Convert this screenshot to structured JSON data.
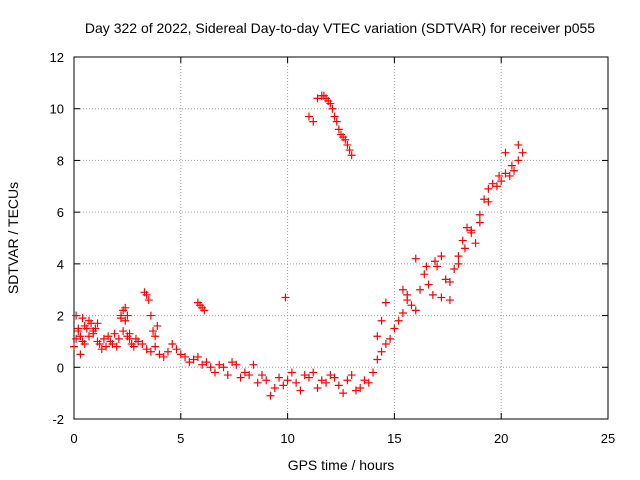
{
  "chart_data": {
    "type": "scatter",
    "title": "Day 322 of 2022, Sidereal Day-to-day VTEC variation (SDTVAR) for receiver p055",
    "xlabel": "GPS time / hours",
    "ylabel": "SDTVAR / TECUs",
    "xlim": [
      0,
      25
    ],
    "ylim": [
      -2,
      12
    ],
    "x_ticks": [
      0,
      5,
      10,
      15,
      20,
      25
    ],
    "y_ticks": [
      -2,
      0,
      2,
      4,
      6,
      8,
      10,
      12
    ],
    "x_tick_labels": [
      "0",
      "5",
      "10",
      "15",
      "20",
      "25"
    ],
    "y_tick_labels": [
      "-2",
      "0",
      "2",
      "4",
      "6",
      "8",
      "10",
      "12"
    ],
    "grid": true,
    "marker": "plus",
    "marker_color": "#ff0000",
    "series": [
      {
        "name": "SDTVAR",
        "x": [
          0.0,
          0.1,
          0.2,
          0.3,
          0.4,
          0.5,
          0.6,
          0.7,
          0.8,
          0.9,
          1.0,
          1.1,
          1.2,
          1.3,
          1.4,
          1.5,
          1.6,
          1.7,
          1.8,
          1.9,
          2.0,
          2.1,
          2.2,
          2.3,
          2.4,
          2.5,
          2.6,
          2.7,
          2.8,
          2.9,
          3.0,
          3.2,
          3.4,
          3.6,
          3.8,
          4.0,
          4.2,
          4.4,
          4.6,
          4.8,
          5.0,
          5.2,
          5.4,
          5.6,
          5.8,
          6.0,
          6.2,
          6.4,
          6.6,
          6.8,
          7.0,
          7.2,
          7.4,
          7.6,
          7.8,
          8.0,
          8.2,
          8.4,
          8.6,
          8.8,
          9.0,
          9.2,
          9.4,
          9.6,
          9.8,
          10.0,
          10.2,
          10.4,
          10.6,
          10.8,
          11.0,
          11.2,
          11.4,
          11.6,
          11.8,
          12.0,
          12.2,
          12.4,
          12.6,
          12.8,
          13.0,
          13.2,
          13.4,
          13.6,
          13.8,
          14.0,
          14.2,
          14.4,
          14.6,
          14.8,
          15.0,
          15.2,
          15.4,
          15.6,
          15.8,
          16.0,
          16.2,
          16.4,
          16.6,
          16.8,
          17.0,
          17.2,
          17.4,
          17.6,
          17.8,
          18.0,
          18.2,
          18.4,
          18.6,
          18.8,
          19.0,
          19.2,
          19.4,
          19.6,
          19.8,
          20.0,
          20.2,
          20.4,
          20.6,
          20.8,
          21.0,
          0.1,
          0.2,
          0.3,
          0.4,
          0.5,
          0.7,
          0.9,
          1.1,
          2.2,
          2.3,
          2.4,
          2.5,
          2.6,
          3.3,
          3.4,
          3.5,
          3.6,
          3.7,
          3.8,
          3.9,
          5.8,
          5.9,
          6.0,
          6.1,
          9.9,
          11.0,
          11.2,
          11.4,
          11.6,
          11.7,
          11.8,
          11.9,
          12.0,
          12.1,
          12.2,
          12.3,
          12.4,
          12.5,
          12.6,
          12.7,
          12.8,
          12.9,
          13.0,
          14.2,
          14.4,
          14.6,
          15.4,
          15.6,
          16.0,
          16.5,
          16.9,
          17.2,
          17.6,
          18.0,
          18.3,
          18.6,
          19.0,
          19.4,
          19.9,
          20.2,
          20.5,
          20.8
        ],
        "y": [
          0.8,
          1.1,
          1.4,
          1.2,
          1.0,
          0.9,
          1.5,
          1.2,
          1.7,
          1.3,
          1.5,
          1.0,
          0.9,
          0.7,
          1.1,
          0.8,
          1.2,
          1.0,
          0.9,
          1.3,
          0.8,
          1.1,
          1.9,
          1.4,
          1.8,
          1.2,
          1.3,
          0.9,
          0.8,
          1.1,
          1.0,
          0.9,
          0.7,
          0.6,
          0.8,
          0.5,
          0.4,
          0.6,
          0.9,
          0.7,
          0.5,
          0.4,
          0.2,
          0.3,
          0.4,
          0.1,
          0.2,
          0.0,
          -0.2,
          0.1,
          0.0,
          -0.3,
          0.2,
          0.1,
          -0.4,
          -0.2,
          -0.3,
          0.1,
          -0.6,
          -0.3,
          -0.5,
          -1.1,
          -0.8,
          -0.4,
          -0.7,
          -0.5,
          -0.2,
          -0.6,
          -0.9,
          -0.3,
          -0.4,
          -0.2,
          -0.8,
          -0.5,
          -0.6,
          -0.3,
          -0.4,
          -0.7,
          -1.0,
          -0.5,
          -0.3,
          -0.9,
          -0.8,
          -0.5,
          -0.6,
          -0.2,
          0.3,
          0.6,
          0.9,
          1.1,
          1.5,
          1.8,
          2.1,
          2.6,
          2.4,
          2.2,
          3.0,
          3.6,
          3.2,
          2.8,
          3.9,
          2.7,
          3.4,
          2.6,
          3.8,
          4.3,
          4.9,
          5.4,
          5.3,
          4.8,
          5.6,
          6.5,
          6.9,
          7.1,
          7.0,
          7.2,
          7.5,
          7.4,
          7.6,
          8.0,
          8.3,
          2.0,
          1.5,
          0.5,
          1.9,
          1.6,
          1.8,
          1.4,
          1.7,
          2.0,
          2.2,
          2.3,
          2.0,
          1.1,
          2.9,
          2.8,
          2.6,
          2.0,
          1.4,
          1.2,
          1.6,
          2.5,
          2.4,
          2.3,
          2.2,
          2.7,
          9.7,
          9.5,
          10.4,
          10.5,
          10.5,
          10.4,
          10.3,
          10.2,
          10.0,
          9.7,
          9.5,
          9.2,
          9.0,
          8.9,
          8.8,
          8.6,
          8.4,
          8.2,
          1.2,
          1.8,
          2.5,
          3.0,
          2.8,
          4.2,
          3.9,
          4.1,
          4.3,
          3.3,
          4.0,
          4.6,
          5.2,
          5.9,
          6.4,
          7.4,
          8.3,
          7.8,
          8.6
        ]
      }
    ]
  }
}
